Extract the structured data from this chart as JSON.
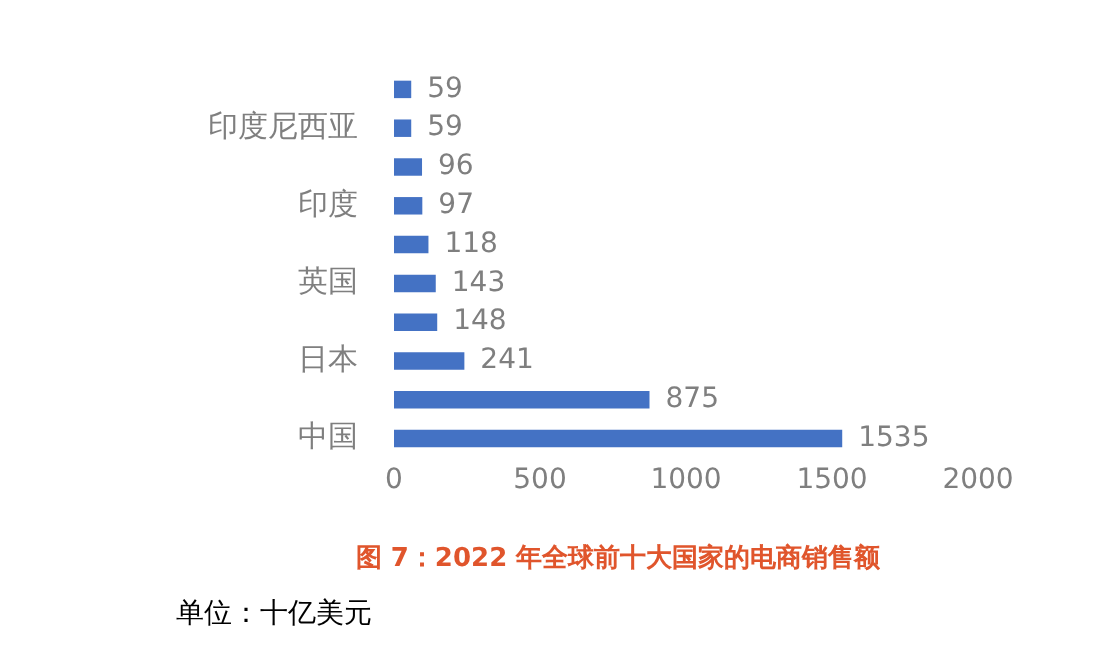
{
  "chart_data": {
    "type": "bar",
    "orientation": "horizontal",
    "title": "图 7：2022 年全球前十大国家的电商销售额",
    "categories": [
      null,
      "印度尼西亚",
      null,
      "印度",
      null,
      "英国",
      null,
      "日本",
      null,
      "中国"
    ],
    "values": [
      59,
      59,
      96,
      97,
      118,
      143,
      148,
      241,
      875,
      1535
    ],
    "color": "#4472c4",
    "data_labels": true,
    "grid": false,
    "legend": false,
    "xlim": [
      0,
      2000
    ],
    "xticks": [
      0,
      500,
      1000,
      1500,
      2000
    ],
    "annotations": [
      "单位：十亿美元"
    ]
  }
}
